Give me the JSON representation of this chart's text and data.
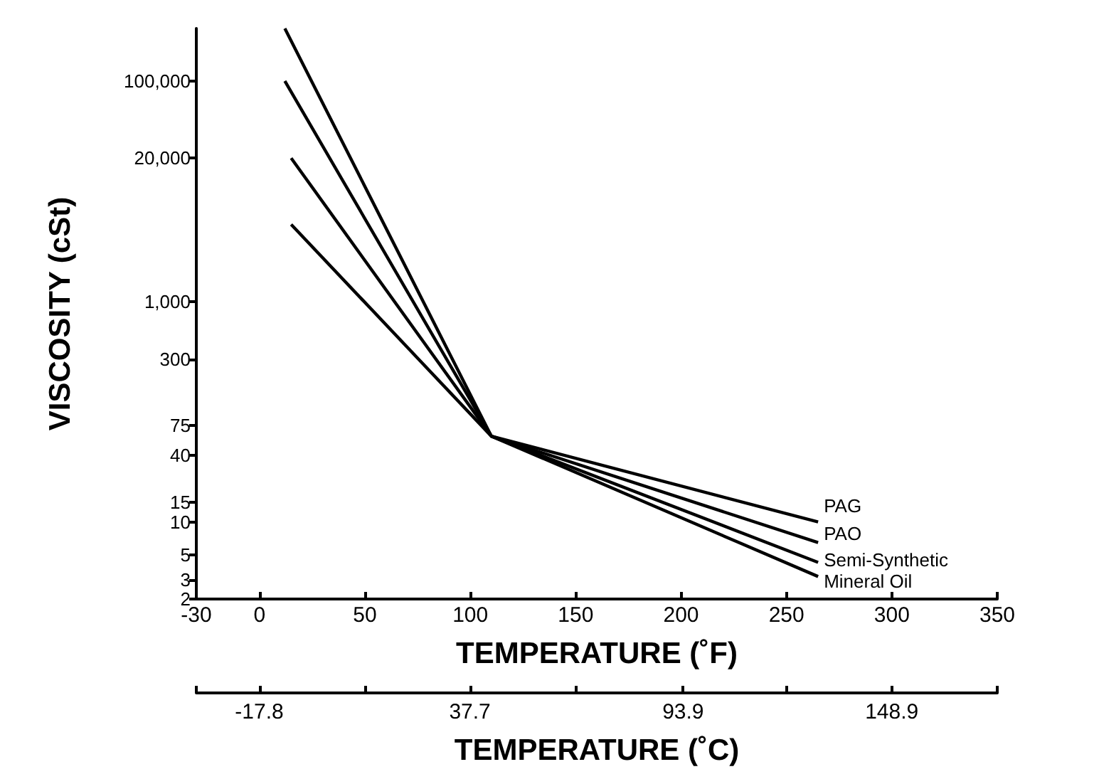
{
  "chart_data": {
    "type": "line",
    "xlabel": "TEMPERATURE (˚F)",
    "ylabel": "VISCOSITY (cSt)",
    "x2label": "TEMPERATURE (˚C)",
    "series": [
      {
        "name": "PAG",
        "color": "#000000",
        "x": [
          15,
          110,
          265
        ],
        "values": [
          5000,
          60,
          10
        ]
      },
      {
        "name": "PAO",
        "color": "#000000",
        "x": [
          15,
          110,
          265
        ],
        "values": [
          20000,
          60,
          6.5
        ]
      },
      {
        "name": "Semi-Synthetic",
        "color": "#000000",
        "x": [
          12,
          110,
          265
        ],
        "values": [
          100000,
          60,
          4.3
        ]
      },
      {
        "name": "Mineral Oil",
        "color": "#000000",
        "x": [
          12,
          110,
          265
        ],
        "values": [
          300000,
          60,
          3.2
        ]
      }
    ],
    "xlim": [
      -30,
      350
    ],
    "xticks": [
      -30,
      0,
      50,
      100,
      150,
      200,
      250,
      300,
      350
    ],
    "ylim": [
      2,
      300000
    ],
    "yticks": [
      2,
      3,
      5,
      10,
      15,
      40,
      75,
      300,
      {
        "value": 1000,
        "label": "1,000"
      },
      {
        "value": 20000,
        "label": "20,000"
      },
      {
        "value": 100000,
        "label": "100,000"
      }
    ],
    "x2lim": [
      -34.4,
      176.7
    ],
    "x2ticks": [
      {
        "value": -17.8,
        "label": "-17.8"
      },
      {
        "value": 10,
        "label": null
      },
      37.7,
      {
        "value": 65.6,
        "label": null
      },
      93.9,
      {
        "value": 121.1,
        "label": null
      },
      148.9
    ],
    "log": "y",
    "grid": false,
    "legend": false,
    "marker": "none",
    "line_style": "solid"
  }
}
